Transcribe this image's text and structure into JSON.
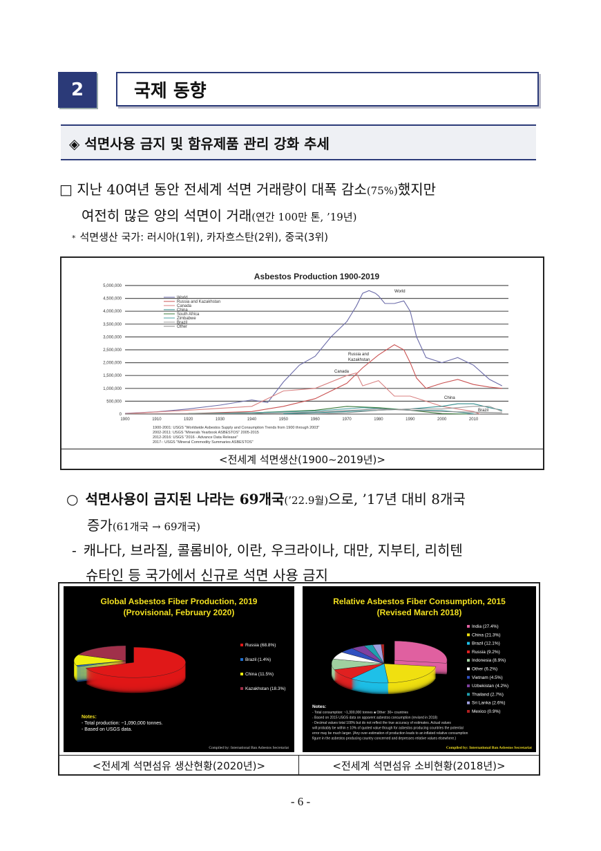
{
  "section": {
    "number": "2",
    "title": "국제 동향"
  },
  "subsection": {
    "title": "◈ 석면사용 금지 및 함유제품 관리 강화 추세"
  },
  "para1": {
    "box": "□",
    "line1a": "지난 40여년 동안 전세계 석면 거래량이 대폭 감소",
    "line1b": "(75%)",
    "line1c": "했지만",
    "line2a": "여전히 많은 양의 석면이 거래",
    "line2b": "(연간 100만 톤, ’19년)"
  },
  "note1": {
    "mark": "*",
    "text": "석면생산 국가: 러시아(1위), 카자흐스탄(2위), 중국(3위)"
  },
  "fig1": {
    "caption": "<전세계 석면생산(1900∼2019년)>",
    "chart_data": {
      "type": "line",
      "title": "Asbestos Production 1900-2019",
      "ylim": [
        0,
        5000000
      ],
      "yticks": [
        "5,000,000",
        "4,500,000",
        "4,000,000",
        "3,500,000",
        "3,000,000",
        "2,500,000",
        "2,000,000",
        "1,500,000",
        "1,000,000",
        "500,000",
        "0"
      ],
      "xticks": [
        "1900",
        "1910",
        "1920",
        "1930",
        "1940",
        "1950",
        "1960",
        "1970",
        "1980",
        "1990",
        "2000",
        "2010"
      ],
      "legend": [
        "World",
        "Russia and Kazakhstan",
        "Canada",
        "China",
        "South Africa",
        "Zimbabwe",
        "Brazil",
        "Other"
      ],
      "annotations": [
        "World",
        "Russia and Kazakhstan",
        "Canada",
        "China",
        "Brazil"
      ],
      "source_lines": [
        "1900-2001: USGS \"Worldwide Asbestos Supply and Consumption Trends from 1900 through 2003\"",
        "2002-2011: USGS \"Minerals Yearbook ASBESTOS\" 2005-2015",
        "2012-2016: USGS \"2016 - Advance Data Release\"",
        "2017-: USGS \"Mineral Commodity Summaries ASBESTOS\""
      ],
      "series": [
        {
          "name": "World",
          "color": "#6a6aa8",
          "x": [
            1900,
            1910,
            1920,
            1930,
            1940,
            1945,
            1950,
            1955,
            1960,
            1965,
            1970,
            1973,
            1975,
            1977,
            1979,
            1980,
            1982,
            1985,
            1988,
            1990,
            1992,
            1995,
            2000,
            2005,
            2010,
            2015,
            2019
          ],
          "values": [
            30000,
            90000,
            200000,
            350000,
            550000,
            450000,
            1250000,
            1900000,
            2250000,
            3000000,
            3600000,
            4200000,
            4700000,
            4800000,
            4700000,
            4600000,
            4300000,
            4300000,
            4400000,
            4000000,
            3000000,
            2200000,
            2000000,
            2200000,
            1900000,
            1350000,
            1100000
          ]
        },
        {
          "name": "Russia and Kazakhstan",
          "color": "#c95050",
          "x": [
            1900,
            1920,
            1940,
            1950,
            1960,
            1970,
            1975,
            1980,
            1985,
            1988,
            1990,
            1992,
            1995,
            2000,
            2005,
            2010,
            2015,
            2019
          ],
          "values": [
            10000,
            20000,
            100000,
            300000,
            600000,
            1200000,
            1800000,
            2300000,
            2700000,
            2500000,
            2000000,
            1400000,
            1000000,
            1200000,
            1350000,
            1150000,
            1050000,
            1000000
          ]
        },
        {
          "name": "Canada",
          "color": "#d88080",
          "x": [
            1900,
            1920,
            1940,
            1950,
            1960,
            1970,
            1973,
            1975,
            1980,
            1985,
            1990,
            1995,
            2000,
            2005,
            2010,
            2012
          ],
          "values": [
            20000,
            150000,
            300000,
            900000,
            1000000,
            1500000,
            1600000,
            1100000,
            1300000,
            700000,
            700000,
            500000,
            300000,
            200000,
            100000,
            0
          ]
        },
        {
          "name": "China",
          "color": "#2e8a8a",
          "x": [
            1950,
            1960,
            1970,
            1980,
            1990,
            2000,
            2005,
            2010,
            2015,
            2019
          ],
          "values": [
            10000,
            50000,
            100000,
            150000,
            200000,
            300000,
            400000,
            400000,
            250000,
            150000
          ]
        },
        {
          "name": "South Africa",
          "color": "#3a7a3a",
          "x": [
            1920,
            1940,
            1960,
            1970,
            1980,
            1990,
            2000,
            2008
          ],
          "values": [
            20000,
            50000,
            150000,
            300000,
            250000,
            150000,
            20000,
            0
          ]
        },
        {
          "name": "Zimbabwe",
          "color": "#4aa0a0",
          "x": [
            1920,
            1940,
            1960,
            1975,
            1990,
            2000,
            2010
          ],
          "values": [
            10000,
            50000,
            120000,
            250000,
            150000,
            140000,
            10000
          ]
        },
        {
          "name": "Brazil",
          "color": "#9a9a9a",
          "x": [
            1960,
            1970,
            1980,
            1990,
            2000,
            2010,
            2015,
            2019
          ],
          "values": [
            10000,
            50000,
            150000,
            200000,
            200000,
            300000,
            300000,
            100000
          ]
        },
        {
          "name": "Other",
          "color": "#8a8a8a",
          "x": [
            1900,
            1940,
            1960,
            1980,
            2000,
            2019
          ],
          "values": [
            5000,
            20000,
            80000,
            200000,
            100000,
            50000
          ]
        }
      ]
    }
  },
  "para2": {
    "mark": "○",
    "bold": "석면사용이 금지된 나라는 69개국",
    "small1": "(’22.9월)",
    "rest1": "으로, ’17년 대비 8개국",
    "line2a": "증가",
    "line2b": "(61개국 → 69개국)"
  },
  "para3": {
    "dash": "-",
    "line1": "캐나다, 브라질, 콜롬비아, 이란, 우크라이나, 대만, 지부티, 리히텐",
    "line2": "슈타인 등 국가에서 신규로 석면 사용 금지"
  },
  "fig2": {
    "caption": "<전세계 석면섬유 생산현황(2020년)>",
    "chart_data": {
      "type": "pie",
      "title": "Global Asbestos Fiber Production, 2019",
      "subtitle": "(Provisional, February 2020)",
      "categories": [
        "Russia",
        "Brazil",
        "China",
        "Kazakhstan"
      ],
      "values": [
        68.8,
        1.4,
        11.5,
        18.3
      ],
      "legend_labels": [
        "Russia (68.8%)",
        "Brazil (1.4%)",
        "China (11.5%)",
        "Kazakhstan (18.3%)"
      ],
      "colors": [
        "#e01818",
        "#1e6fd0",
        "#f0f010",
        "#a0304a"
      ],
      "notes_title": "Notes:",
      "notes": [
        "- Total production: ~1,090,000 tonnes.",
        "- Based on USGS data."
      ],
      "credit": "Compiled by: International Ban Asbestos Secretariat"
    }
  },
  "fig3": {
    "caption": "<전세계 석면섬유 소비현황(2018년)>",
    "chart_data": {
      "type": "pie",
      "title": "Relative Asbestos Fiber Consumption, 2015",
      "subtitle": "(Revised March 2018)",
      "categories": [
        "India",
        "China",
        "Brazil",
        "Russia",
        "Indonesia",
        "Other",
        "Vietnam",
        "Uzbekistan",
        "Thailand",
        "Sri Lanka",
        "Mexico"
      ],
      "values": [
        27.4,
        21.3,
        12.1,
        9.2,
        8.9,
        6.2,
        4.5,
        4.2,
        2.7,
        2.6,
        0.9
      ],
      "legend_labels": [
        "India (27.4%)",
        "China (21.3%)",
        "Brazil (12.1%)",
        "Russia (9.2%)",
        "Indonesia (8.9%)",
        "Other (6.2%)",
        "Vietnam (4.5%)",
        "Uzbekistan (4.2%)",
        "Thailand (2.7%)",
        "Sri Lanka (2.6%)",
        "Mexico (0.9%)"
      ],
      "colors": [
        "#e060a0",
        "#f0e010",
        "#1ec0e8",
        "#e02020",
        "#a0d0a0",
        "#ffffff",
        "#3050c0",
        "#8040a0",
        "#20a0b0",
        "#a0a0e0",
        "#b02020"
      ],
      "notes_title": "Notes:",
      "notes": [
        "- Total consumption: ~1,300,000 tonnes  ■ Other: 30+ countries",
        "- Based on 2015 USGS data on apparent asbestos consumption (revised in 2018)",
        "- Decimal values total 100% but do not reflect the true accuracy of estimates. Actual values",
        "will probably be within ± 10% of quoted value though for asbestos producing countries the potential",
        "error may be much larger. (Any over-estimation of production leads to an inflated relative consumption",
        "figure in the asbestos producing country concerned and depresses relative values elsewhere.)"
      ],
      "credit": "Compiled by: International Ban Asbestos Secretariat"
    }
  },
  "page_number": "- 6 -"
}
